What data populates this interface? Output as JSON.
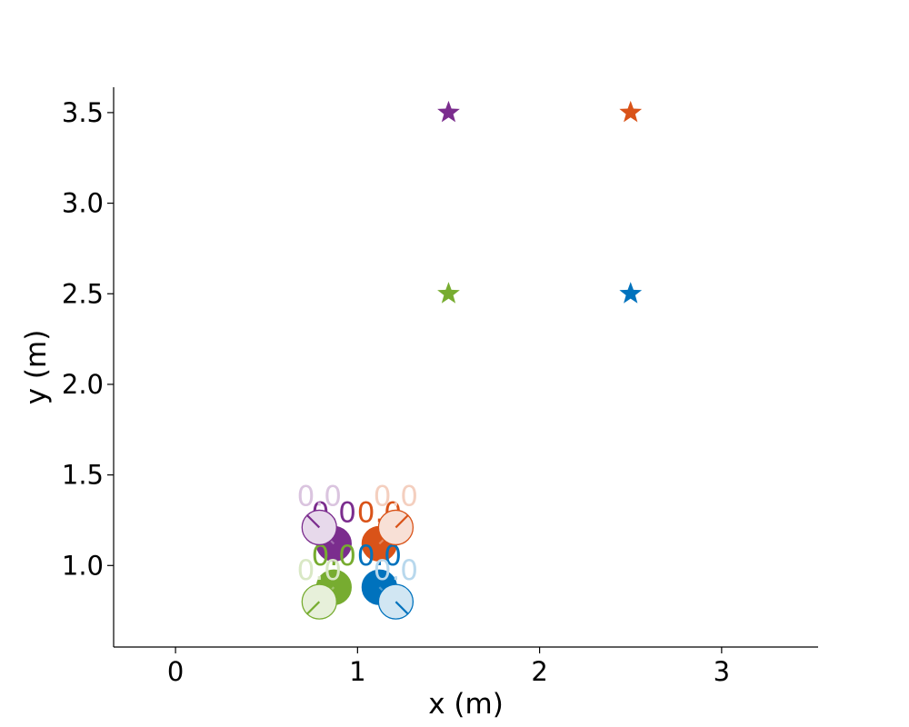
{
  "chart_data": {
    "type": "scatter",
    "title": "",
    "xlabel": "x (m)",
    "ylabel": "y (m)",
    "xlim": [
      -0.34,
      3.53
    ],
    "ylim": [
      0.55,
      3.64
    ],
    "xticks": [
      0,
      1,
      2,
      3
    ],
    "yticks": [
      1.0,
      1.5,
      2.0,
      2.5,
      3.0,
      3.5
    ],
    "xtick_labels": [
      "0",
      "1",
      "2",
      "3"
    ],
    "ytick_labels": [
      "1.0",
      "1.5",
      "2.0",
      "2.5",
      "3.0",
      "3.5"
    ],
    "grid": false,
    "spines": [
      "left",
      "bottom"
    ],
    "robots": [
      {
        "color": "#7B2D8E",
        "goal": [
          1.5,
          3.5
        ],
        "current": {
          "x": 0.87,
          "y": 1.12,
          "heading_deg": 135,
          "label": "0.0"
        },
        "ghost": {
          "x": 0.79,
          "y": 1.21,
          "heading_deg": 135,
          "label": "0.0"
        }
      },
      {
        "color": "#D95319",
        "goal": [
          2.5,
          3.5
        ],
        "current": {
          "x": 1.12,
          "y": 1.12,
          "heading_deg": 45,
          "label": "0.0"
        },
        "ghost": {
          "x": 1.21,
          "y": 1.21,
          "heading_deg": 45,
          "label": "0.0"
        }
      },
      {
        "color": "#77AC30",
        "goal": [
          1.5,
          2.5
        ],
        "current": {
          "x": 0.87,
          "y": 0.88,
          "heading_deg": 225,
          "label": "0.0"
        },
        "ghost": {
          "x": 0.79,
          "y": 0.8,
          "heading_deg": 225,
          "label": "0.0"
        }
      },
      {
        "color": "#0072BD",
        "goal": [
          2.5,
          2.5
        ],
        "current": {
          "x": 1.12,
          "y": 0.88,
          "heading_deg": 315,
          "label": "0.0"
        },
        "ghost": {
          "x": 1.21,
          "y": 0.8,
          "heading_deg": 315,
          "label": "0.0"
        }
      }
    ]
  }
}
